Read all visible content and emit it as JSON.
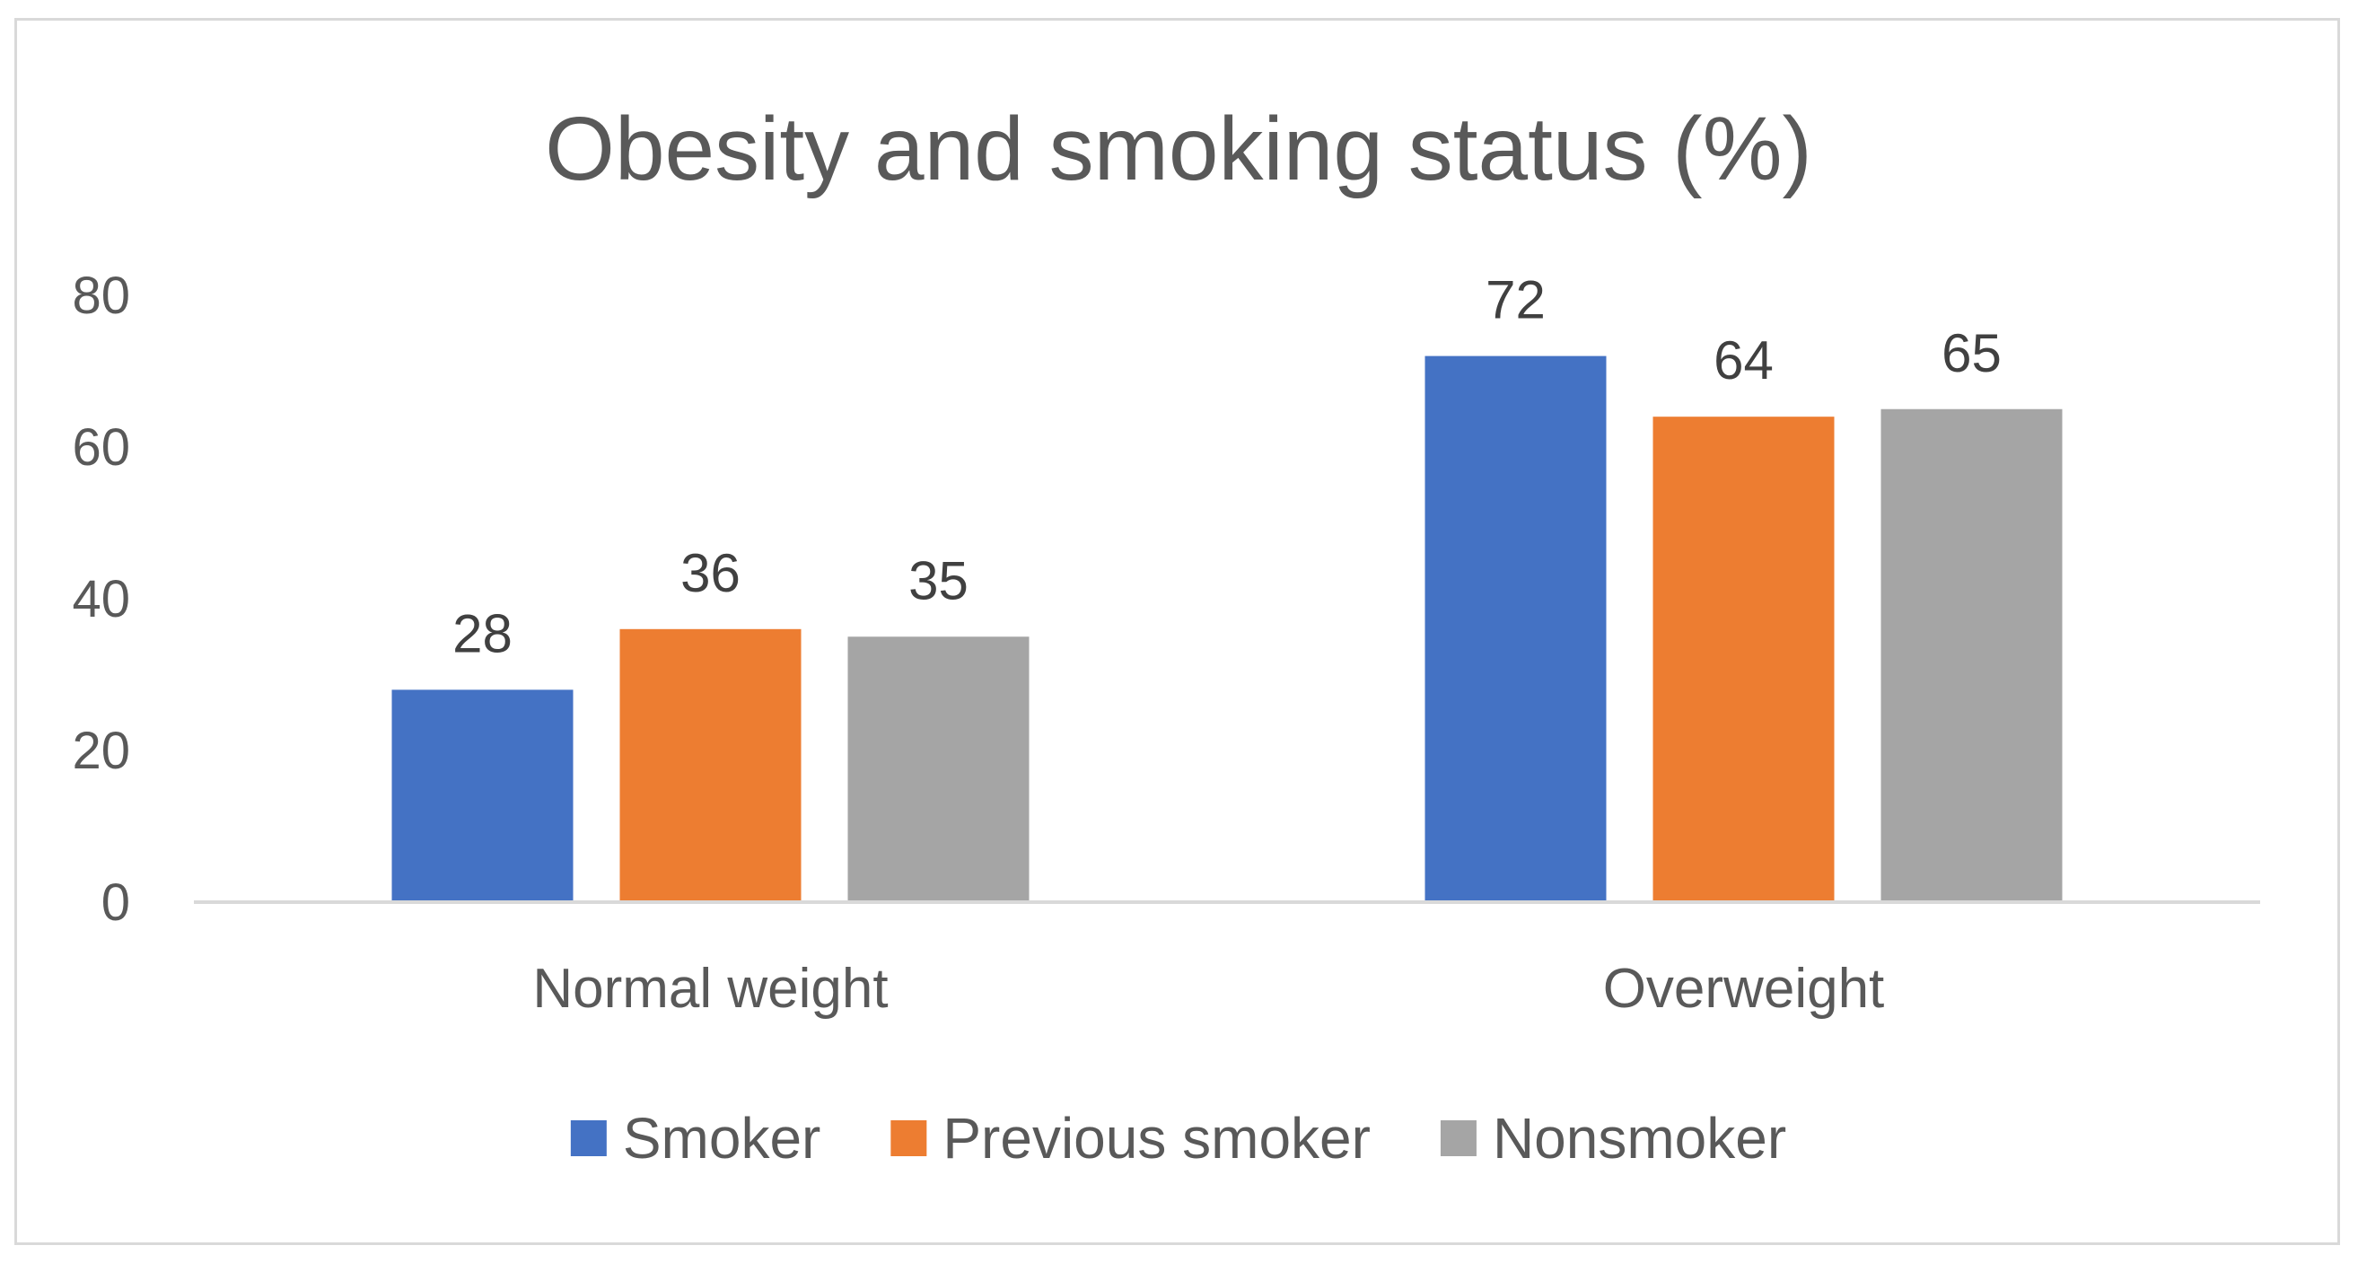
{
  "chart_data": {
    "type": "bar",
    "title": "Obesity and smoking status (%)",
    "xlabel": "",
    "ylabel": "",
    "categories": [
      "Normal weight",
      "Overweight"
    ],
    "series": [
      {
        "name": "Smoker",
        "values": [
          28,
          72
        ],
        "color": "#4472C4"
      },
      {
        "name": "Previous smoker",
        "values": [
          36,
          64
        ],
        "color": "#ED7D31"
      },
      {
        "name": "Nonsmoker",
        "values": [
          35,
          65
        ],
        "color": "#A5A5A5"
      }
    ],
    "ylim": [
      0,
      80
    ],
    "yticks": [
      0,
      20,
      40,
      60,
      80
    ],
    "grid": false,
    "legend": "bottom",
    "data_labels": true
  }
}
